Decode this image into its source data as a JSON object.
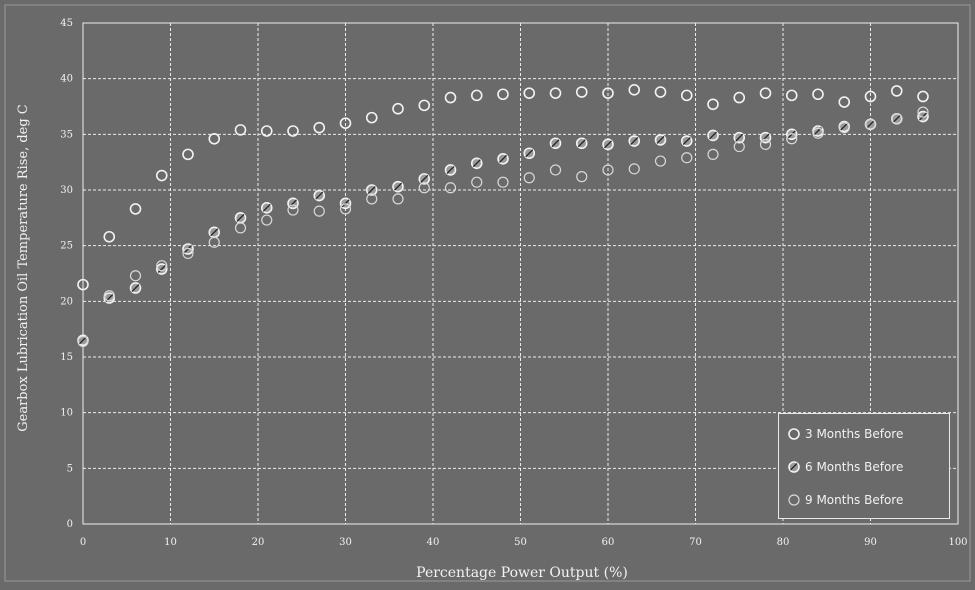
{
  "chart_data": {
    "type": "scatter",
    "title": "",
    "xlabel": "Percentage Power Output (%)",
    "ylabel": "Gearbox Lubrication Oil Temperature Rise, deg C",
    "xlim": [
      0,
      100
    ],
    "ylim": [
      0,
      45
    ],
    "xticks": [
      0,
      10,
      20,
      30,
      40,
      50,
      60,
      70,
      80,
      90,
      100
    ],
    "yticks": [
      0,
      5,
      10,
      15,
      20,
      25,
      30,
      35,
      40,
      45
    ],
    "grid": true,
    "legend_position": "bottom-right",
    "series": [
      {
        "name": "3 Months Before",
        "marker": "open-circle",
        "x": [
          0,
          3,
          6,
          9,
          12,
          15,
          18,
          21,
          24,
          27,
          30,
          33,
          36,
          39,
          42,
          45,
          48,
          51,
          54,
          57,
          60,
          63,
          66,
          69,
          72,
          75,
          78,
          81,
          84,
          87,
          90,
          93,
          96
        ],
        "y": [
          21.5,
          25.8,
          28.3,
          31.3,
          33.2,
          34.6,
          35.4,
          35.3,
          35.3,
          35.6,
          36.0,
          36.5,
          37.3,
          37.6,
          38.3,
          38.5,
          38.6,
          38.7,
          38.7,
          38.8,
          38.7,
          39.0,
          38.8,
          38.5,
          37.7,
          38.3,
          38.7,
          38.5,
          38.6,
          37.9,
          38.4,
          38.9,
          38.4
        ]
      },
      {
        "name": "6 Months Before",
        "marker": "hatched-circle",
        "x": [
          0,
          3,
          6,
          9,
          12,
          15,
          18,
          21,
          24,
          27,
          30,
          33,
          36,
          39,
          42,
          45,
          48,
          51,
          54,
          57,
          60,
          63,
          66,
          69,
          72,
          75,
          78,
          81,
          84,
          87,
          90,
          93,
          96
        ],
        "y": [
          16.5,
          20.3,
          21.2,
          22.9,
          24.7,
          26.2,
          27.5,
          28.4,
          28.8,
          29.5,
          28.8,
          30.0,
          30.3,
          31.0,
          31.8,
          32.4,
          32.8,
          33.3,
          34.2,
          34.2,
          34.1,
          34.4,
          34.5,
          34.4,
          34.9,
          34.7,
          34.7,
          35.0,
          35.3,
          35.7,
          35.9,
          36.4,
          36.6
        ]
      },
      {
        "name": "9 Months Before",
        "marker": "open-circle-light",
        "x": [
          0,
          3,
          6,
          9,
          12,
          15,
          18,
          21,
          24,
          27,
          30,
          33,
          36,
          39,
          42,
          45,
          48,
          51,
          54,
          57,
          60,
          63,
          66,
          69,
          72,
          75,
          78,
          81,
          84,
          87,
          90,
          93,
          96
        ],
        "y": [
          16.4,
          20.5,
          22.3,
          23.2,
          24.3,
          25.3,
          26.6,
          27.3,
          28.2,
          28.1,
          28.3,
          29.2,
          29.2,
          30.2,
          30.2,
          30.7,
          30.7,
          31.1,
          31.8,
          31.2,
          31.8,
          31.9,
          32.6,
          32.9,
          33.2,
          33.9,
          34.1,
          34.6,
          35.1,
          35.6,
          35.9,
          36.4,
          37.0
        ]
      }
    ]
  },
  "legend": {
    "items": [
      "3 Months Before",
      "6 Months Before",
      "9 Months Before"
    ]
  },
  "colors": {
    "background": "#6a6a6a",
    "grid": "#ededed",
    "marker_stroke": "#f2f2f2",
    "text": "#f2f2f2"
  }
}
